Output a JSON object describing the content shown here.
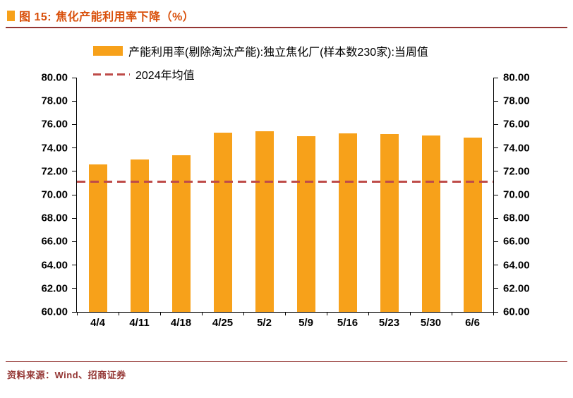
{
  "header": {
    "title_prefix": "图 15:",
    "title": "焦化产能利用率下降（%）"
  },
  "legend": {
    "bar_series_label": "产能利用率(剔除淘汰产能):独立焦化厂(样本数230家):当周值",
    "avg_line_label": "2024年均值"
  },
  "footer": {
    "source": "资料来源：Wind、招商证券"
  },
  "colors": {
    "bar": "#F7A11A",
    "avg_line": "#BE4B48",
    "title": "#D9500B",
    "rule": "#943634",
    "axis": "#000000"
  },
  "chart_data": {
    "type": "bar",
    "title": "焦化产能利用率下降（%）",
    "categories": [
      "4/4",
      "4/11",
      "4/18",
      "4/25",
      "5/2",
      "5/9",
      "5/16",
      "5/23",
      "5/30",
      "6/6"
    ],
    "series": [
      {
        "name": "产能利用率(剔除淘汰产能):独立焦化厂(样本数230家):当周值",
        "type": "bar",
        "values": [
          72.6,
          73.0,
          73.4,
          75.3,
          75.45,
          75.0,
          75.25,
          75.2,
          75.05,
          74.9
        ]
      },
      {
        "name": "2024年均值",
        "type": "dashed-line",
        "value": 71.1
      }
    ],
    "ylim": [
      60,
      80
    ],
    "ytick_step": 2,
    "ytick_decimals": 2,
    "grid": false,
    "legend_position": "top-left",
    "dual_y_axis": true
  }
}
